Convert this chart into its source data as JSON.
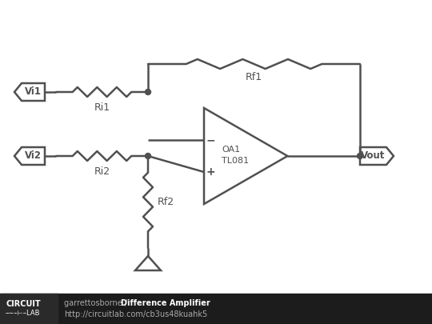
{
  "bg_color": "#ffffff",
  "line_color": "#505050",
  "line_width": 1.8,
  "footer_bg": "#1c1c1c",
  "footer_author": "garrettosborne / ",
  "footer_title": "Difference Amplifier",
  "footer_url": "http://circuitlab.com/cb3us48kuahk5",
  "vi1_label": "Vi1",
  "vi2_label": "Vi2",
  "vout_label": "Vout",
  "ri1_label": "Ri1",
  "ri2_label": "Ri2",
  "rf1_label": "Rf1",
  "rf2_label": "Rf2",
  "oa1_label": "OA1",
  "tl081_label": "TL081",
  "minus_label": "−",
  "plus_label": "+"
}
